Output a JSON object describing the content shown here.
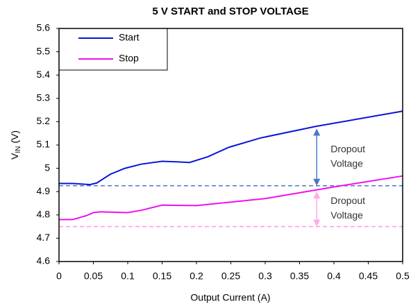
{
  "chart_data": {
    "type": "line",
    "title": "5 V START and STOP VOLTAGE",
    "xlabel": "Output Current (A)",
    "ylabel": {
      "main": "V",
      "sub": "IN",
      "unit": "(V)"
    },
    "xlim": [
      0,
      0.5
    ],
    "xticks": [
      0,
      0.05,
      0.1,
      0.15,
      0.2,
      0.25,
      0.3,
      0.35,
      0.4,
      0.45,
      0.5
    ],
    "ylim": [
      4.6,
      5.6
    ],
    "yticks": [
      4.6,
      4.7,
      4.8,
      4.9,
      5,
      5.1,
      5.2,
      5.3,
      5.4,
      5.5,
      5.6
    ],
    "grid": false,
    "legend": "upper left",
    "series": [
      {
        "name": "Start",
        "color": "#0a14d8",
        "x": [
          0,
          0.02,
          0.045,
          0.055,
          0.075,
          0.096,
          0.12,
          0.15,
          0.17,
          0.19,
          0.217,
          0.247,
          0.293,
          0.374,
          0.5
        ],
        "values": [
          4.935,
          4.935,
          4.93,
          4.937,
          4.975,
          5.0,
          5.018,
          5.03,
          5.028,
          5.025,
          5.05,
          5.09,
          5.13,
          5.18,
          5.245
        ]
      },
      {
        "name": "Stop",
        "color": "#ee10ee",
        "x": [
          0,
          0.02,
          0.04,
          0.05,
          0.06,
          0.1,
          0.12,
          0.15,
          0.2,
          0.3,
          0.4,
          0.5
        ],
        "values": [
          4.78,
          4.78,
          4.797,
          4.81,
          4.813,
          4.81,
          4.82,
          4.842,
          4.84,
          4.87,
          4.92,
          4.967
        ]
      }
    ],
    "reference_lines": [
      {
        "value": 4.925,
        "color": "#4a78c8"
      },
      {
        "value": 4.75,
        "color": "#ff99e0"
      }
    ],
    "annotations": [
      {
        "lines": [
          "Dropout",
          "Voltage"
        ],
        "x": 0.375,
        "from": 5.17,
        "to": 4.925,
        "color": "#4a78c8"
      },
      {
        "lines": [
          "Dropout",
          "Voltage"
        ],
        "x": 0.375,
        "from": 4.9,
        "to": 4.75,
        "color": "#ffaae6"
      }
    ]
  }
}
